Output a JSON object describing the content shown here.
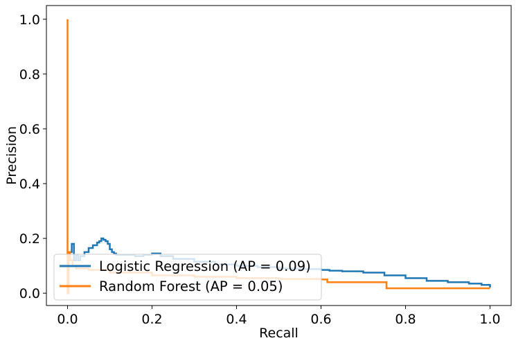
{
  "chart_data": {
    "type": "line",
    "title": "",
    "xlabel": "Recall",
    "ylabel": "Precision",
    "xlim": [
      -0.05,
      1.05
    ],
    "ylim": [
      -0.045,
      1.05
    ],
    "xticks": [
      0.0,
      0.2,
      0.4,
      0.6,
      0.8,
      1.0
    ],
    "xtick_labels": [
      "0.0",
      "0.2",
      "0.4",
      "0.6",
      "0.8",
      "1.0"
    ],
    "yticks": [
      0.0,
      0.2,
      0.4,
      0.6,
      0.8,
      1.0
    ],
    "ytick_labels": [
      "0.0",
      "0.2",
      "0.4",
      "0.6",
      "0.8",
      "1.0"
    ],
    "grid": false,
    "legend_position": "lower-left",
    "series": [
      {
        "name": "Logistic Regression (AP = 0.09)",
        "color": "#1f77b4",
        "step": true,
        "x": [
          0.0,
          0.002,
          0.005,
          0.01,
          0.015,
          0.02,
          0.025,
          0.03,
          0.04,
          0.05,
          0.06,
          0.07,
          0.075,
          0.08,
          0.085,
          0.09,
          0.095,
          0.1,
          0.105,
          0.11,
          0.115,
          0.12,
          0.16,
          0.18,
          0.2,
          0.22,
          0.25,
          0.3,
          0.35,
          0.4,
          0.45,
          0.5,
          0.55,
          0.6,
          0.62,
          0.65,
          0.7,
          0.75,
          0.8,
          0.85,
          0.9,
          0.95,
          0.98,
          1.0
        ],
        "y": [
          0.0,
          0.12,
          0.15,
          0.18,
          0.12,
          0.14,
          0.12,
          0.135,
          0.15,
          0.165,
          0.175,
          0.185,
          0.19,
          0.2,
          0.195,
          0.19,
          0.18,
          0.16,
          0.15,
          0.145,
          0.14,
          0.14,
          0.135,
          0.14,
          0.145,
          0.135,
          0.125,
          0.115,
          0.105,
          0.1,
          0.095,
          0.09,
          0.088,
          0.085,
          0.082,
          0.08,
          0.075,
          0.065,
          0.055,
          0.045,
          0.04,
          0.035,
          0.03,
          0.02
        ]
      },
      {
        "name": "Random Forest (AP = 0.05)",
        "color": "#ff7f0e",
        "step": true,
        "x": [
          0.0,
          0.0,
          0.003,
          0.006,
          0.012,
          0.02,
          0.05,
          0.1,
          0.2,
          0.3,
          0.4,
          0.5,
          0.6,
          0.615,
          0.75,
          0.755,
          0.9,
          1.0
        ],
        "y": [
          1.0,
          0.0,
          0.15,
          0.12,
          0.1,
          0.09,
          0.085,
          0.075,
          0.065,
          0.06,
          0.055,
          0.052,
          0.05,
          0.04,
          0.04,
          0.018,
          0.018,
          0.018
        ]
      }
    ]
  }
}
